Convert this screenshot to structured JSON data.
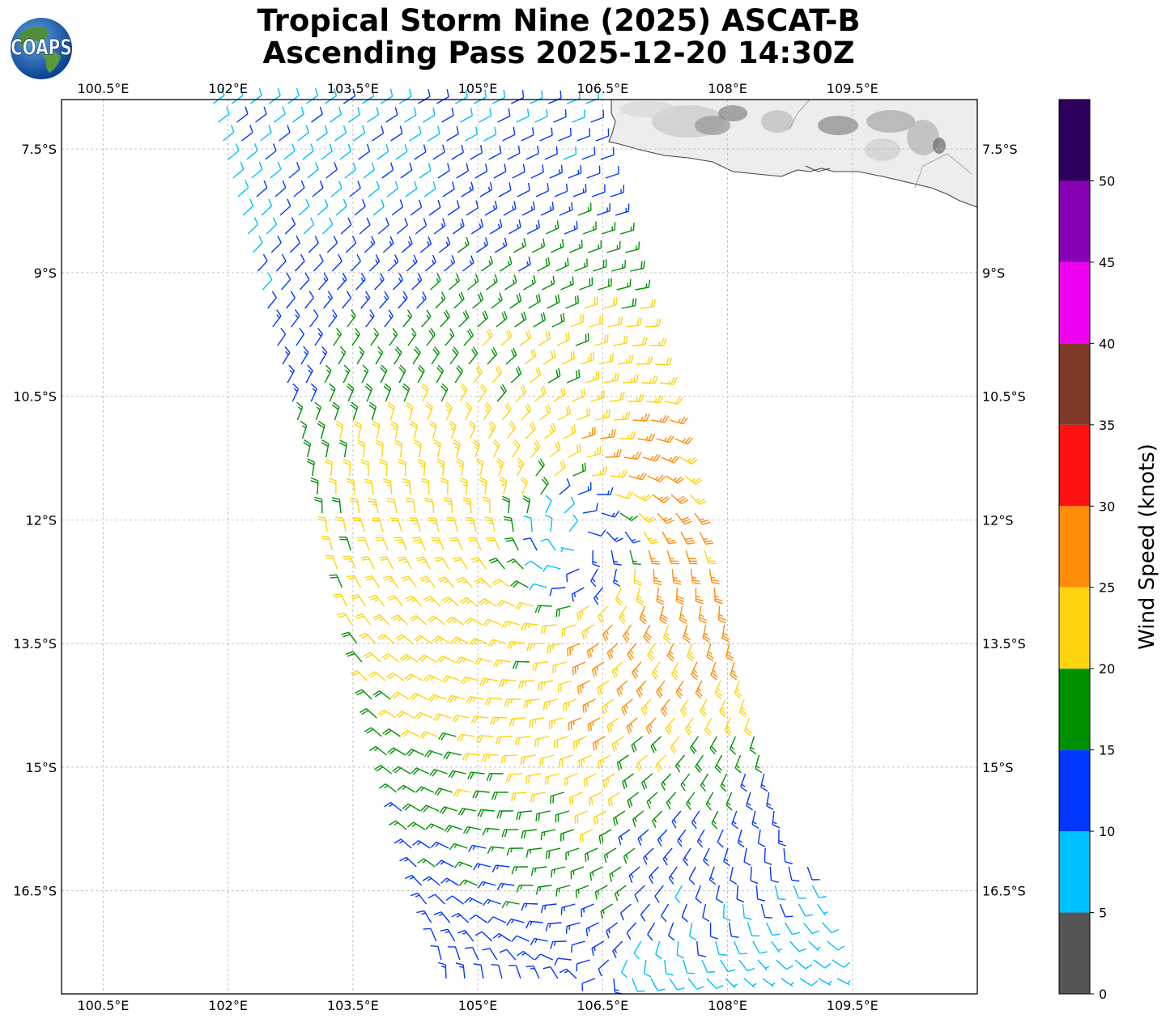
{
  "title": {
    "line1": "Tropical Storm Nine (2025) ASCAT-B",
    "line2": "Ascending Pass 2025-12-20 14:30Z"
  },
  "logo": {
    "text": "COAPS",
    "icon": "globe-logo-icon"
  },
  "map": {
    "lon_range": [
      100.0,
      111.0
    ],
    "lat_range": [
      -17.75,
      -6.9
    ],
    "lon_ticks": [
      "100.5°E",
      "102°E",
      "103.5°E",
      "105°E",
      "106.5°E",
      "108°E",
      "109.5°E"
    ],
    "lat_ticks": [
      "7.5°S",
      "9°S",
      "10.5°S",
      "12°S",
      "13.5°S",
      "15°S",
      "16.5°S"
    ],
    "gridlines": true,
    "land": "Java (upper right), grayscale topography",
    "storm_center": {
      "lon": 106.2,
      "lat": -12.3
    },
    "swath": "ascending pass, tilted NW–SE between ~101.7°E and ~109.5°E"
  },
  "colorbar": {
    "label": "Wind Speed (knots)",
    "ticks": [
      "0",
      "5",
      "10",
      "15",
      "20",
      "25",
      "30",
      "35",
      "40",
      "45",
      "50"
    ],
    "bins": [
      {
        "from": 0,
        "to": 5,
        "color": "#555555"
      },
      {
        "from": 5,
        "to": 10,
        "color": "#00bfff"
      },
      {
        "from": 10,
        "to": 15,
        "color": "#0038ff"
      },
      {
        "from": 15,
        "to": 20,
        "color": "#009100"
      },
      {
        "from": 20,
        "to": 25,
        "color": "#ffd40f"
      },
      {
        "from": 25,
        "to": 30,
        "color": "#ff8c0a"
      },
      {
        "from": 30,
        "to": 35,
        "color": "#ff1111"
      },
      {
        "from": 35,
        "to": 40,
        "color": "#7f3a28"
      },
      {
        "from": 40,
        "to": 45,
        "color": "#f000f0"
      },
      {
        "from": 45,
        "to": 50,
        "color": "#8800b5"
      },
      {
        "from": 50,
        "to": 55,
        "color": "#2e005e"
      }
    ]
  }
}
